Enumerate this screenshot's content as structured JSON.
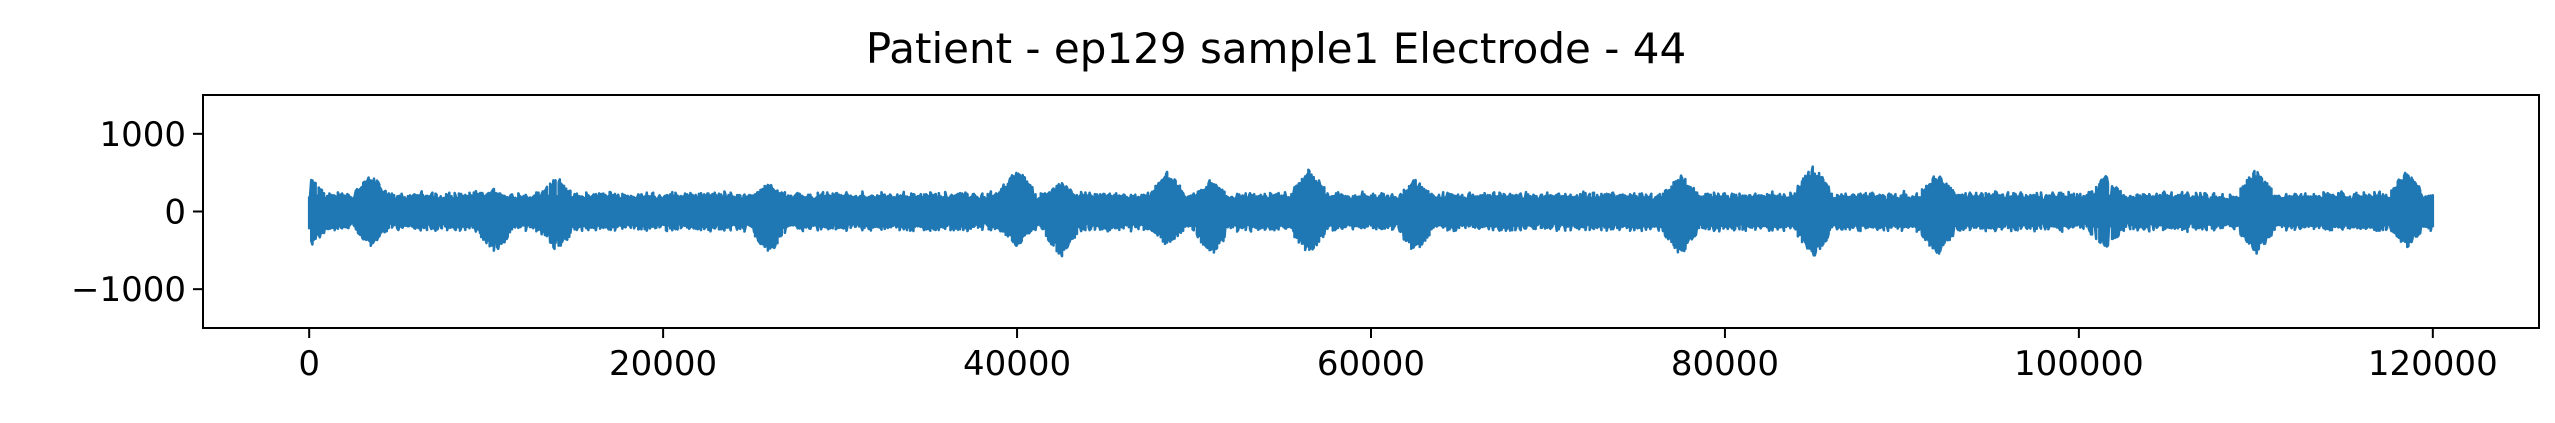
{
  "chart_data": {
    "type": "line",
    "title": "Patient - ep129 sample1 Electrode - 44",
    "xlabel": "",
    "ylabel": "",
    "xlim": [
      -6000,
      126000
    ],
    "ylim": [
      -1500,
      1500
    ],
    "grid": false,
    "legend": "none",
    "color": "#1f77b4",
    "x_ticks": [
      0,
      20000,
      40000,
      60000,
      80000,
      100000,
      120000
    ],
    "x_tick_labels": [
      "0",
      "20000",
      "40000",
      "60000",
      "80000",
      "100000",
      "120000"
    ],
    "y_ticks": [
      1000,
      0,
      -1000
    ],
    "y_tick_labels": [
      "1000",
      "0",
      "−1000"
    ],
    "series": [
      {
        "n_samples": 120000,
        "baseline": 0,
        "typical_amplitude": 200,
        "bursts": [
          {
            "x": 0,
            "peak": 450,
            "trough": -480
          },
          {
            "x": 3500,
            "peak": 480,
            "trough": -460
          },
          {
            "x": 10500,
            "peak": 300,
            "trough": -550
          },
          {
            "x": 14000,
            "peak": 450,
            "trough": -520
          },
          {
            "x": 26000,
            "peak": 380,
            "trough": -560
          },
          {
            "x": 40000,
            "peak": 560,
            "trough": -450
          },
          {
            "x": 42500,
            "peak": 380,
            "trough": -590
          },
          {
            "x": 48500,
            "peak": 520,
            "trough": -450
          },
          {
            "x": 51000,
            "peak": 430,
            "trough": -580
          },
          {
            "x": 56500,
            "peak": 560,
            "trough": -560
          },
          {
            "x": 62500,
            "peak": 420,
            "trough": -540
          },
          {
            "x": 77500,
            "peak": 480,
            "trough": -570
          },
          {
            "x": 85000,
            "peak": 600,
            "trough": -600
          },
          {
            "x": 92000,
            "peak": 500,
            "trough": -570
          },
          {
            "x": 101500,
            "peak": 480,
            "trough": -500
          },
          {
            "x": 110000,
            "peak": 550,
            "trough": -560
          },
          {
            "x": 118500,
            "peak": 520,
            "trough": -480
          }
        ]
      }
    ]
  }
}
